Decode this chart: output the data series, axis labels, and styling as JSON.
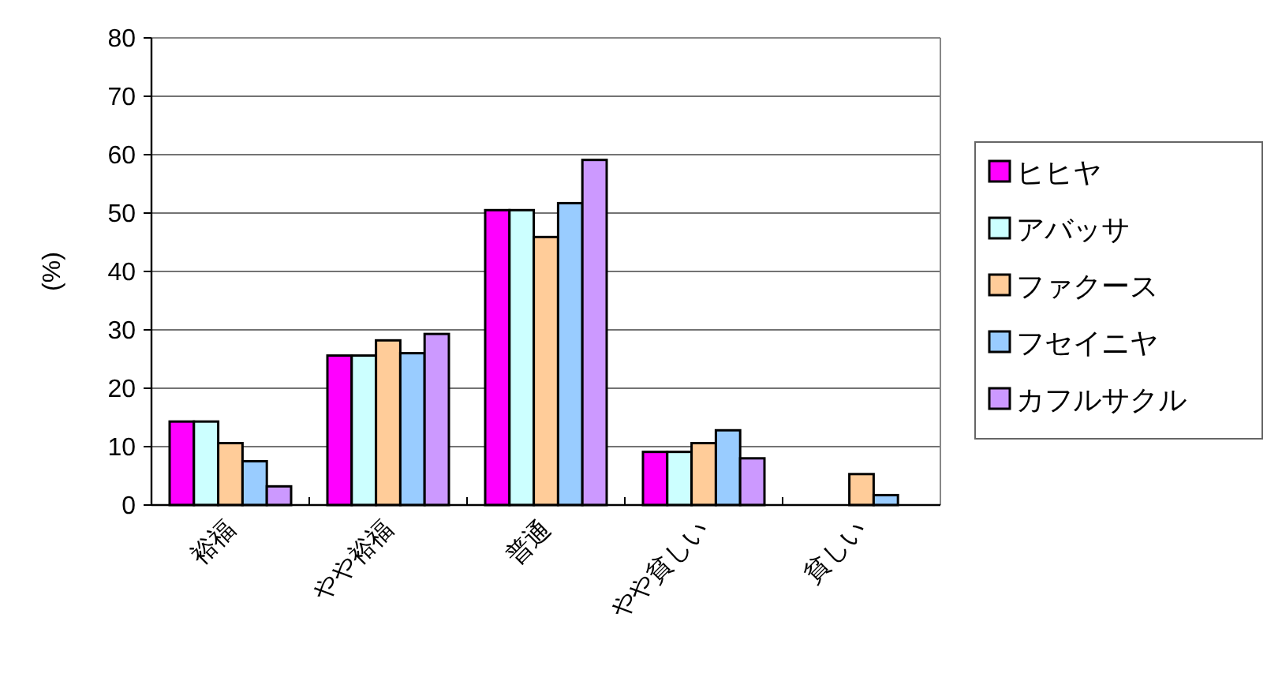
{
  "chart_data": {
    "type": "bar",
    "ylabel": "(%)",
    "categories": [
      "裕福",
      "やや裕福",
      "普通",
      "やや貧しい",
      "貧しい"
    ],
    "series": [
      {
        "name": "ヒヒヤ",
        "color": "#ff00ff",
        "values": [
          14.3,
          25.6,
          50.5,
          9.1,
          0
        ]
      },
      {
        "name": "アバッサ",
        "color": "#ccffff",
        "values": [
          14.3,
          25.6,
          50.5,
          9.1,
          0
        ]
      },
      {
        "name": "ファクース",
        "color": "#ffcc99",
        "values": [
          10.6,
          28.2,
          45.9,
          10.6,
          5.3
        ]
      },
      {
        "name": "フセイニヤ",
        "color": "#99ccff",
        "values": [
          7.5,
          26.0,
          51.7,
          12.8,
          1.7
        ]
      },
      {
        "name": "カフルサクル",
        "color": "#cc99ff",
        "values": [
          3.2,
          29.3,
          59.1,
          8.0,
          0
        ]
      }
    ],
    "ylim": [
      0,
      80
    ],
    "yticks": [
      0,
      10,
      20,
      30,
      40,
      50,
      60,
      70,
      80
    ],
    "grid": "y",
    "legend": "right"
  }
}
